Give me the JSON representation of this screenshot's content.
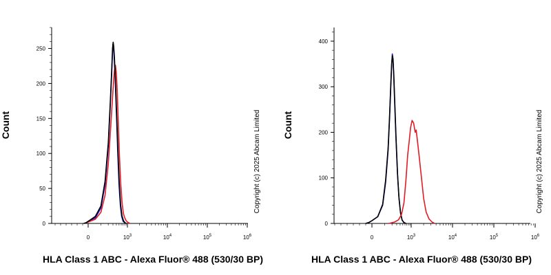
{
  "chart_data": [
    {
      "type": "line",
      "title": "",
      "xlabel": "HLA Class 1 ABC - Alexa Fluor® 488 (530/30 BP)",
      "ylabel": "Count",
      "copyright": "Copyright (c) 2025 Abcam Limited",
      "x_scale": "biexponential",
      "x_ticks": [
        {
          "value": 0,
          "base": "0",
          "exp": ""
        },
        {
          "value": 1000,
          "base": "10",
          "exp": "3"
        },
        {
          "value": 10000,
          "base": "10",
          "exp": "4"
        },
        {
          "value": 100000,
          "base": "10",
          "exp": "5"
        },
        {
          "value": 1000000,
          "base": "10",
          "exp": "6"
        }
      ],
      "y_ticks": [
        0,
        50,
        100,
        150,
        200,
        250
      ],
      "ylim": [
        0,
        280
      ],
      "grid": false,
      "series": [
        {
          "color": "#1a1acc",
          "points": [
            [
              -80,
              0
            ],
            [
              -40,
              1
            ],
            [
              0,
              3
            ],
            [
              50,
              8
            ],
            [
              100,
              22
            ],
            [
              150,
              55
            ],
            [
              200,
              110
            ],
            [
              240,
              170
            ],
            [
              270,
              215
            ],
            [
              290,
              245
            ],
            [
              300,
              256
            ],
            [
              315,
              252
            ],
            [
              330,
              240
            ],
            [
              360,
              210
            ],
            [
              400,
              160
            ],
            [
              450,
              100
            ],
            [
              500,
              55
            ],
            [
              560,
              25
            ],
            [
              620,
              10
            ],
            [
              700,
              3
            ],
            [
              800,
              1
            ],
            [
              900,
              0
            ]
          ]
        },
        {
          "color": "#e01b24",
          "points": [
            [
              -80,
              0
            ],
            [
              -40,
              1
            ],
            [
              0,
              2
            ],
            [
              50,
              6
            ],
            [
              100,
              16
            ],
            [
              150,
              40
            ],
            [
              200,
              85
            ],
            [
              250,
              140
            ],
            [
              300,
              190
            ],
            [
              340,
              218
            ],
            [
              370,
              226
            ],
            [
              400,
              215
            ],
            [
              430,
              190
            ],
            [
              470,
              145
            ],
            [
              520,
              95
            ],
            [
              580,
              55
            ],
            [
              650,
              28
            ],
            [
              720,
              14
            ],
            [
              800,
              8
            ],
            [
              900,
              4
            ],
            [
              1000,
              2
            ],
            [
              1150,
              0
            ]
          ]
        },
        {
          "color": "#000000",
          "points": [
            [
              -80,
              0
            ],
            [
              -40,
              1
            ],
            [
              0,
              3
            ],
            [
              50,
              10
            ],
            [
              100,
              25
            ],
            [
              150,
              60
            ],
            [
              200,
              115
            ],
            [
              240,
              175
            ],
            [
              270,
              220
            ],
            [
              290,
              250
            ],
            [
              305,
              259
            ],
            [
              320,
              253
            ],
            [
              340,
              238
            ],
            [
              370,
              205
            ],
            [
              410,
              155
            ],
            [
              460,
              100
            ],
            [
              510,
              58
            ],
            [
              570,
              27
            ],
            [
              640,
              11
            ],
            [
              720,
              4
            ],
            [
              820,
              1
            ],
            [
              920,
              0
            ]
          ]
        }
      ]
    },
    {
      "type": "line",
      "title": "",
      "xlabel": "HLA Class 1 ABC - Alexa Fluor® 488 (530/30 BP)",
      "ylabel": "Count",
      "copyright": "Copyright (c) 2025 Abcam Limited",
      "x_scale": "biexponential",
      "x_ticks": [
        {
          "value": 0,
          "base": "0",
          "exp": ""
        },
        {
          "value": 1000,
          "base": "10",
          "exp": "3"
        },
        {
          "value": 10000,
          "base": "10",
          "exp": "4"
        },
        {
          "value": 100000,
          "base": "10",
          "exp": "5"
        },
        {
          "value": 1000000,
          "base": "10",
          "exp": "6"
        }
      ],
      "y_ticks": [
        0,
        100,
        200,
        300,
        400
      ],
      "ylim": [
        0,
        430
      ],
      "grid": false,
      "series": [
        {
          "color": "#1a1acc",
          "points": [
            [
              -100,
              0
            ],
            [
              -50,
              2
            ],
            [
              0,
              6
            ],
            [
              40,
              15
            ],
            [
              80,
              40
            ],
            [
              110,
              90
            ],
            [
              140,
              160
            ],
            [
              160,
              230
            ],
            [
              180,
              300
            ],
            [
              195,
              350
            ],
            [
              205,
              372
            ],
            [
              215,
              365
            ],
            [
              230,
              330
            ],
            [
              250,
              270
            ],
            [
              280,
              190
            ],
            [
              320,
              110
            ],
            [
              360,
              60
            ],
            [
              410,
              25
            ],
            [
              470,
              8
            ],
            [
              550,
              2
            ],
            [
              650,
              0
            ]
          ]
        },
        {
          "color": "#000000",
          "points": [
            [
              -100,
              0
            ],
            [
              -50,
              2
            ],
            [
              0,
              6
            ],
            [
              40,
              15
            ],
            [
              80,
              42
            ],
            [
              110,
              95
            ],
            [
              140,
              165
            ],
            [
              160,
              235
            ],
            [
              180,
              305
            ],
            [
              195,
              352
            ],
            [
              208,
              368
            ],
            [
              220,
              360
            ],
            [
              235,
              325
            ],
            [
              255,
              265
            ],
            [
              285,
              185
            ],
            [
              325,
              105
            ],
            [
              365,
              55
            ],
            [
              415,
              22
            ],
            [
              475,
              7
            ],
            [
              555,
              2
            ],
            [
              655,
              0
            ]
          ]
        },
        {
          "color": "#e01b24",
          "points": [
            [
              150,
              0
            ],
            [
              250,
              3
            ],
            [
              350,
              8
            ],
            [
              450,
              20
            ],
            [
              550,
              45
            ],
            [
              650,
              95
            ],
            [
              750,
              150
            ],
            [
              850,
              180
            ],
            [
              950,
              210
            ],
            [
              1050,
              226
            ],
            [
              1150,
              220
            ],
            [
              1250,
              200
            ],
            [
              1320,
              205
            ],
            [
              1400,
              185
            ],
            [
              1550,
              150
            ],
            [
              1750,
              105
            ],
            [
              2000,
              55
            ],
            [
              2300,
              25
            ],
            [
              2700,
              10
            ],
            [
              3200,
              3
            ],
            [
              3700,
              0
            ]
          ]
        }
      ]
    }
  ]
}
